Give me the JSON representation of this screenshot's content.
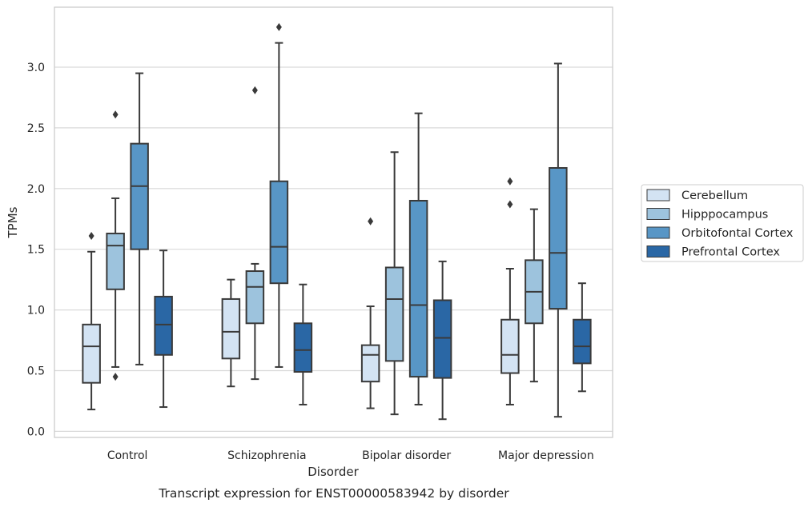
{
  "chart_data": {
    "type": "box",
    "caption": "Transcript expression for ENST00000583942 by disorder",
    "xlabel": "Disorder",
    "ylabel": "TPMs",
    "ylim": [
      -0.05,
      3.5
    ],
    "yticks": [
      "0.0",
      "0.5",
      "1.0",
      "1.5",
      "2.0",
      "2.5",
      "3.0"
    ],
    "grid": "horizontal",
    "legend_position": "right",
    "categories": [
      "Control",
      "Schizophrenia",
      "Bipolar disorder",
      "Major depression"
    ],
    "series": [
      {
        "name": "Cerebellum",
        "color": "#d3e3f3",
        "boxes": [
          {
            "whisker_low": 0.18,
            "q1": 0.4,
            "median": 0.7,
            "q3": 0.88,
            "whisker_high": 1.48,
            "outliers": [
              1.61
            ]
          },
          {
            "whisker_low": 0.37,
            "q1": 0.6,
            "median": 0.82,
            "q3": 1.09,
            "whisker_high": 1.25,
            "outliers": []
          },
          {
            "whisker_low": 0.19,
            "q1": 0.41,
            "median": 0.63,
            "q3": 0.71,
            "whisker_high": 1.03,
            "outliers": [
              1.73
            ]
          },
          {
            "whisker_low": 0.22,
            "q1": 0.48,
            "median": 0.63,
            "q3": 0.92,
            "whisker_high": 1.34,
            "outliers": [
              1.87,
              2.06
            ]
          }
        ]
      },
      {
        "name": "Hipppocampus",
        "color": "#9dc3dd",
        "boxes": [
          {
            "whisker_low": 0.53,
            "q1": 1.17,
            "median": 1.53,
            "q3": 1.63,
            "whisker_high": 1.92,
            "outliers": [
              0.45,
              2.61
            ]
          },
          {
            "whisker_low": 0.43,
            "q1": 0.89,
            "median": 1.19,
            "q3": 1.32,
            "whisker_high": 1.38,
            "outliers": [
              2.81
            ]
          },
          {
            "whisker_low": 0.14,
            "q1": 0.58,
            "median": 1.09,
            "q3": 1.35,
            "whisker_high": 2.3,
            "outliers": []
          },
          {
            "whisker_low": 0.41,
            "q1": 0.89,
            "median": 1.15,
            "q3": 1.41,
            "whisker_high": 1.83,
            "outliers": []
          }
        ]
      },
      {
        "name": "Orbitofontal Cortex",
        "color": "#5896c6",
        "boxes": [
          {
            "whisker_low": 0.55,
            "q1": 1.5,
            "median": 2.02,
            "q3": 2.37,
            "whisker_high": 2.95,
            "outliers": []
          },
          {
            "whisker_low": 0.53,
            "q1": 1.22,
            "median": 1.52,
            "q3": 2.06,
            "whisker_high": 3.2,
            "outliers": [
              3.33
            ]
          },
          {
            "whisker_low": 0.22,
            "q1": 0.45,
            "median": 1.04,
            "q3": 1.9,
            "whisker_high": 2.62,
            "outliers": []
          },
          {
            "whisker_low": 0.12,
            "q1": 1.01,
            "median": 1.47,
            "q3": 2.17,
            "whisker_high": 3.03,
            "outliers": []
          }
        ]
      },
      {
        "name": "Prefrontal Cortex",
        "color": "#2a67a5",
        "boxes": [
          {
            "whisker_low": 0.2,
            "q1": 0.63,
            "median": 0.88,
            "q3": 1.11,
            "whisker_high": 1.49,
            "outliers": []
          },
          {
            "whisker_low": 0.22,
            "q1": 0.49,
            "median": 0.67,
            "q3": 0.89,
            "whisker_high": 1.21,
            "outliers": []
          },
          {
            "whisker_low": 0.1,
            "q1": 0.44,
            "median": 0.77,
            "q3": 1.08,
            "whisker_high": 1.4,
            "outliers": []
          },
          {
            "whisker_low": 0.33,
            "q1": 0.56,
            "median": 0.7,
            "q3": 0.92,
            "whisker_high": 1.22,
            "outliers": []
          }
        ]
      }
    ]
  }
}
